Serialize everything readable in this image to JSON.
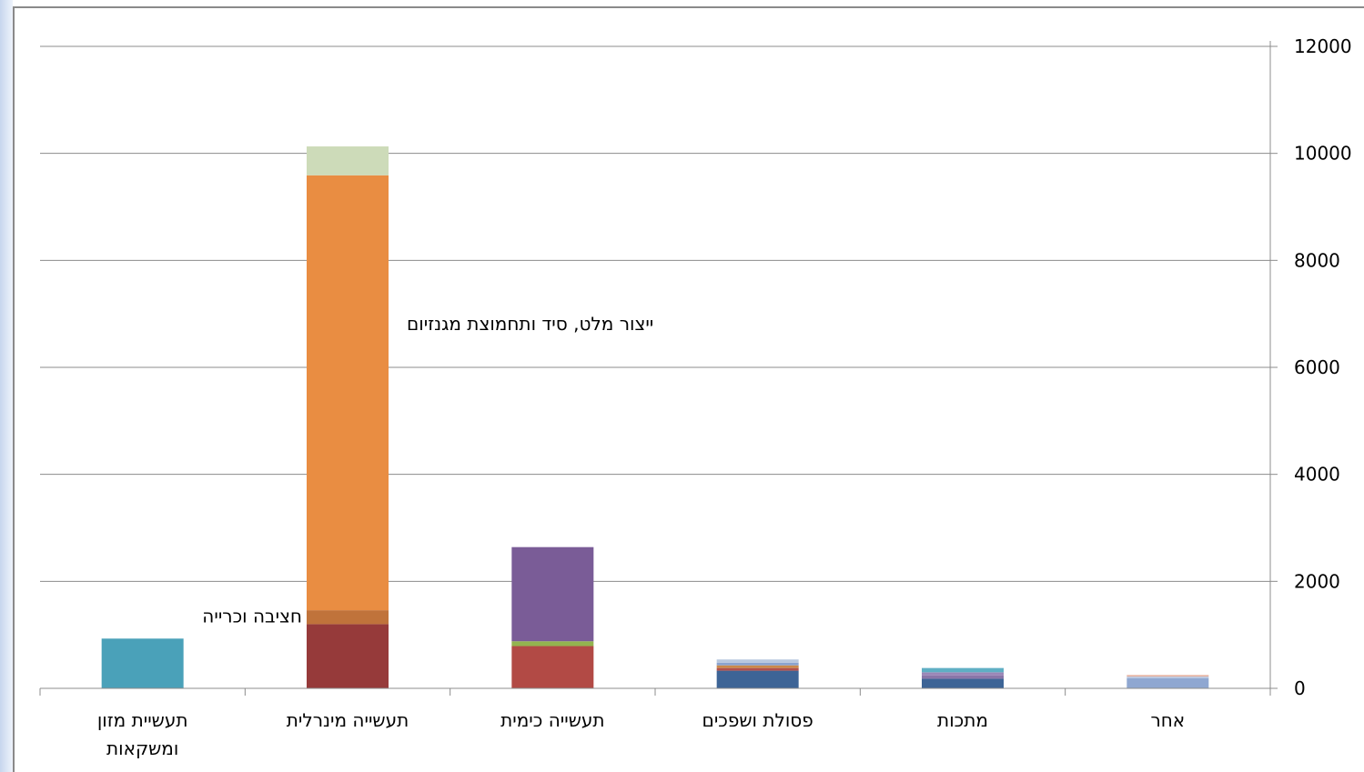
{
  "chart_data": {
    "type": "bar",
    "stacked": true,
    "title": "",
    "xlabel": "",
    "ylabel": "",
    "ylim": [
      0,
      12000
    ],
    "y_ticks": [
      "0",
      "2000",
      "4000",
      "6000",
      "8000",
      "10000",
      "12000"
    ],
    "y_axis_side": "right",
    "grid": true,
    "legend": "none",
    "categories": [
      [
        "תעשיית מזון",
        "ומשקאות"
      ],
      [
        "תעשייה מינרלית"
      ],
      [
        "תעשייה כימית"
      ],
      [
        "פסולת ושפכים"
      ],
      [
        "מתכות"
      ],
      [
        "אחר"
      ]
    ],
    "stacks": [
      [
        {
          "value": 930,
          "color": "#4aa1b9"
        }
      ],
      [
        {
          "value": 1200,
          "color": "#963a3a"
        },
        {
          "value": 260,
          "color": "#c0733b"
        },
        {
          "value": 8130,
          "color": "#e98d42"
        },
        {
          "value": 540,
          "color": "#cddbb9"
        }
      ],
      [
        {
          "value": 790,
          "color": "#b24a45"
        },
        {
          "value": 90,
          "color": "#93b44f"
        },
        {
          "value": 1760,
          "color": "#7a5c97"
        }
      ],
      [
        {
          "value": 330,
          "color": "#3d6496"
        },
        {
          "value": 50,
          "color": "#b2504c"
        },
        {
          "value": 50,
          "color": "#c9894b"
        },
        {
          "value": 50,
          "color": "#8aa3cf"
        },
        {
          "value": 60,
          "color": "#b8c8df"
        }
      ],
      [
        {
          "value": 180,
          "color": "#3d6496"
        },
        {
          "value": 60,
          "color": "#8a76a8"
        },
        {
          "value": 60,
          "color": "#9b87b7"
        },
        {
          "value": 80,
          "color": "#5fafc4"
        }
      ],
      [
        {
          "value": 190,
          "color": "#8fa7d1"
        },
        {
          "value": 30,
          "color": "#b6c5e0"
        },
        {
          "value": 30,
          "color": "#e8b6a4"
        }
      ]
    ],
    "annotations": [
      {
        "text": "ייצור מלט, סיד ותחמוצת מגנזיום",
        "category_index": 1,
        "y": 6700
      },
      {
        "text": "חציבה וכרייה",
        "category_index": 1,
        "y": 1230
      }
    ]
  }
}
